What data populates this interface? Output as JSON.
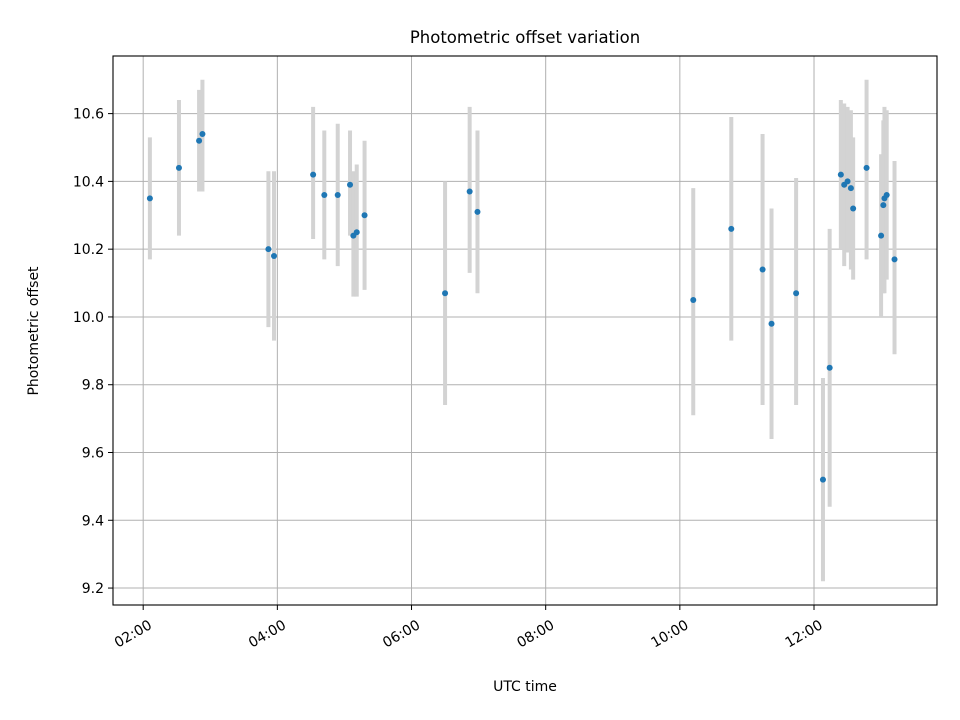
{
  "chart_data": {
    "type": "scatter",
    "title": "Photometric offset variation",
    "xlabel": "UTC time",
    "ylabel": "Photometric offset",
    "xlim": [
      "01:33",
      "13:50"
    ],
    "ylim": [
      9.15,
      10.77
    ],
    "xticks": [
      "02:00",
      "04:00",
      "06:00",
      "08:00",
      "10:00",
      "12:00"
    ],
    "yticks": [
      "9.2",
      "9.4",
      "9.6",
      "9.8",
      "10.0",
      "10.2",
      "10.4",
      "10.6"
    ],
    "grid": true,
    "colors": {
      "point": "#1f77b4",
      "errorbar": "#d3d3d3",
      "grid": "#b0b0b0"
    },
    "points": [
      {
        "x": "02:06",
        "y": 10.35,
        "ylow": 10.17,
        "yhigh": 10.53
      },
      {
        "x": "02:32",
        "y": 10.44,
        "ylow": 10.24,
        "yhigh": 10.64
      },
      {
        "x": "02:50",
        "y": 10.52,
        "ylow": 10.37,
        "yhigh": 10.67
      },
      {
        "x": "02:53",
        "y": 10.54,
        "ylow": 10.37,
        "yhigh": 10.7
      },
      {
        "x": "03:52",
        "y": 10.2,
        "ylow": 9.97,
        "yhigh": 10.43
      },
      {
        "x": "03:57",
        "y": 10.18,
        "ylow": 9.93,
        "yhigh": 10.43
      },
      {
        "x": "04:32",
        "y": 10.42,
        "ylow": 10.23,
        "yhigh": 10.62
      },
      {
        "x": "04:42",
        "y": 10.36,
        "ylow": 10.17,
        "yhigh": 10.55
      },
      {
        "x": "04:54",
        "y": 10.36,
        "ylow": 10.15,
        "yhigh": 10.57
      },
      {
        "x": "05:05",
        "y": 10.39,
        "ylow": 10.24,
        "yhigh": 10.55
      },
      {
        "x": "05:08",
        "y": 10.24,
        "ylow": 10.06,
        "yhigh": 10.43
      },
      {
        "x": "05:11",
        "y": 10.25,
        "ylow": 10.06,
        "yhigh": 10.45
      },
      {
        "x": "05:18",
        "y": 10.3,
        "ylow": 10.08,
        "yhigh": 10.52
      },
      {
        "x": "06:30",
        "y": 10.07,
        "ylow": 9.74,
        "yhigh": 10.4
      },
      {
        "x": "06:52",
        "y": 10.37,
        "ylow": 10.13,
        "yhigh": 10.62
      },
      {
        "x": "06:59",
        "y": 10.31,
        "ylow": 10.07,
        "yhigh": 10.55
      },
      {
        "x": "10:12",
        "y": 10.05,
        "ylow": 9.71,
        "yhigh": 10.38
      },
      {
        "x": "10:46",
        "y": 10.26,
        "ylow": 9.93,
        "yhigh": 10.59
      },
      {
        "x": "11:14",
        "y": 10.14,
        "ylow": 9.74,
        "yhigh": 10.54
      },
      {
        "x": "11:22",
        "y": 9.98,
        "ylow": 9.64,
        "yhigh": 10.32
      },
      {
        "x": "11:44",
        "y": 10.07,
        "ylow": 9.74,
        "yhigh": 10.41
      },
      {
        "x": "12:08",
        "y": 9.52,
        "ylow": 9.22,
        "yhigh": 9.82
      },
      {
        "x": "12:14",
        "y": 9.85,
        "ylow": 9.44,
        "yhigh": 10.26
      },
      {
        "x": "12:24",
        "y": 10.42,
        "ylow": 10.2,
        "yhigh": 10.64
      },
      {
        "x": "12:27",
        "y": 10.39,
        "ylow": 10.15,
        "yhigh": 10.63
      },
      {
        "x": "12:30",
        "y": 10.4,
        "ylow": 10.19,
        "yhigh": 10.62
      },
      {
        "x": "12:33",
        "y": 10.38,
        "ylow": 10.14,
        "yhigh": 10.61
      },
      {
        "x": "12:35",
        "y": 10.32,
        "ylow": 10.11,
        "yhigh": 10.53
      },
      {
        "x": "12:47",
        "y": 10.44,
        "ylow": 10.17,
        "yhigh": 10.7
      },
      {
        "x": "13:00",
        "y": 10.24,
        "ylow": 10.0,
        "yhigh": 10.48
      },
      {
        "x": "13:02",
        "y": 10.33,
        "ylow": 10.07,
        "yhigh": 10.58
      },
      {
        "x": "13:03",
        "y": 10.35,
        "ylow": 10.07,
        "yhigh": 10.62
      },
      {
        "x": "13:05",
        "y": 10.36,
        "ylow": 10.11,
        "yhigh": 10.61
      },
      {
        "x": "13:12",
        "y": 10.17,
        "ylow": 9.89,
        "yhigh": 10.46
      }
    ]
  }
}
